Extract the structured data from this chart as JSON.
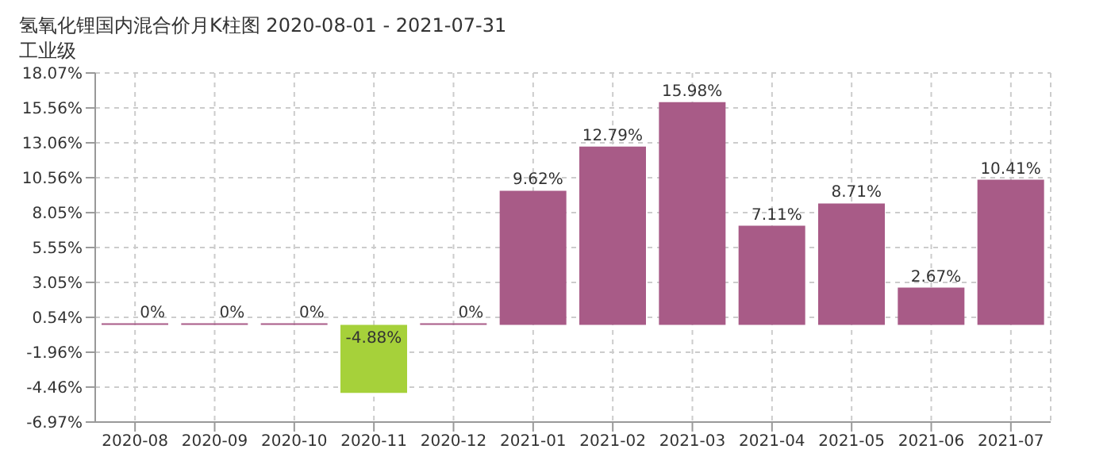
{
  "chart_data": {
    "type": "bar",
    "title": "氢氧化锂国内混合价月K柱图  2020-08-01 - 2021-07-31",
    "subtitle": "工业级",
    "categories": [
      "2020-08",
      "2020-09",
      "2020-10",
      "2020-11",
      "2020-12",
      "2021-01",
      "2021-02",
      "2021-03",
      "2021-04",
      "2021-05",
      "2021-06",
      "2021-07"
    ],
    "values": [
      0,
      0,
      0,
      -4.88,
      0,
      9.62,
      12.79,
      15.98,
      7.11,
      8.71,
      2.67,
      10.41
    ],
    "value_labels": [
      "0%",
      "0%",
      "0%",
      "-4.88%",
      "0%",
      "9.62%",
      "12.79%",
      "15.98%",
      "7.11%",
      "8.71%",
      "2.67%",
      "10.41%"
    ],
    "colors": [
      "#a85b87",
      "#a85b87",
      "#a85b87",
      "#a6d13a",
      "#a85b87",
      "#a85b87",
      "#a85b87",
      "#a85b87",
      "#a85b87",
      "#a85b87",
      "#a85b87",
      "#a85b87"
    ],
    "ylim": [
      -6.97,
      18.07
    ],
    "yticks": [
      {
        "value": -6.97,
        "label": "-6.97%"
      },
      {
        "value": -4.46,
        "label": "-4.46%"
      },
      {
        "value": -1.96,
        "label": "-1.96%"
      },
      {
        "value": 0.54,
        "label": "0.54%"
      },
      {
        "value": 3.05,
        "label": "3.05%"
      },
      {
        "value": 5.55,
        "label": "5.55%"
      },
      {
        "value": 8.05,
        "label": "8.05%"
      },
      {
        "value": 10.56,
        "label": "10.56%"
      },
      {
        "value": 13.06,
        "label": "13.06%"
      },
      {
        "value": 15.56,
        "label": "15.56%"
      },
      {
        "value": 18.07,
        "label": "18.07%"
      }
    ],
    "grid": true
  }
}
